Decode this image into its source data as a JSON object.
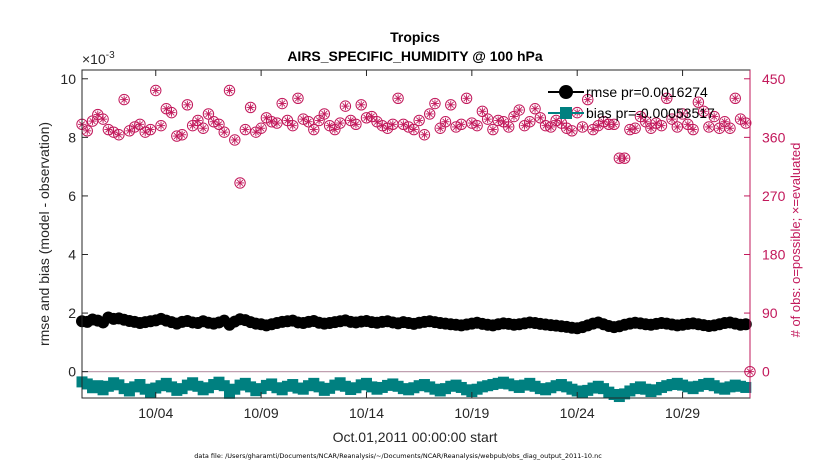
{
  "chart_data": {
    "type": "scatter",
    "title": "Tropics",
    "subtitle": "AIRS_SPECIFIC_HUMIDITY @ 100 hPa",
    "xlabel": "Oct.01,2011 00:00:00 start",
    "ylabel_left": "rmse and bias (model - observation)",
    "ylabel_right": "# of obs: o=possible; ×=evaluated",
    "y_exponent_label": "×10",
    "y_exponent_power": "-3",
    "x_range_days": [
      0.5,
      32.2
    ],
    "x_ticks": [
      {
        "day": 4,
        "label": "10/04"
      },
      {
        "day": 9,
        "label": "10/09"
      },
      {
        "day": 14,
        "label": "10/14"
      },
      {
        "day": 19,
        "label": "10/19"
      },
      {
        "day": 24,
        "label": "10/24"
      },
      {
        "day": 29,
        "label": "10/29"
      }
    ],
    "ylim_left": [
      -0.9,
      10.3
    ],
    "yticks_left": [
      {
        "value": 0,
        "label": "0"
      },
      {
        "value": 2,
        "label": "2"
      },
      {
        "value": 4,
        "label": "4"
      },
      {
        "value": 6,
        "label": "6"
      },
      {
        "value": 8,
        "label": "8"
      },
      {
        "value": 10,
        "label": "10"
      }
    ],
    "ylim_right": [
      -40.5,
      463.5
    ],
    "yticks_right": [
      {
        "value": 0,
        "label": "0"
      },
      {
        "value": 90,
        "label": "90"
      },
      {
        "value": 180,
        "label": "180"
      },
      {
        "value": 270,
        "label": "270"
      },
      {
        "value": 360,
        "label": "360"
      },
      {
        "value": 450,
        "label": "450"
      }
    ],
    "legend": [
      {
        "name": "rmse",
        "label": "rmse pr=0.0016274",
        "color": "#000000"
      },
      {
        "name": "bias",
        "label": "bias pr=-0.00053517",
        "color": "#008080"
      }
    ],
    "colors": {
      "rmse": "#000000",
      "bias": "#008080",
      "obs": "#c2185b",
      "zero_line": "#c0a0b0"
    },
    "series": [
      {
        "name": "rmse",
        "axis": "left",
        "units": "1e-3",
        "x": [
          0.5,
          0.75,
          1.0,
          1.25,
          1.5,
          1.75,
          2.0,
          2.25,
          2.5,
          2.75,
          3.0,
          3.25,
          3.5,
          3.75,
          4.0,
          4.25,
          4.5,
          4.75,
          5.0,
          5.25,
          5.5,
          5.75,
          6.0,
          6.25,
          6.5,
          6.75,
          7.0,
          7.25,
          7.5,
          7.75,
          8.0,
          8.25,
          8.5,
          8.75,
          9.0,
          9.25,
          9.5,
          9.75,
          10.0,
          10.25,
          10.5,
          10.75,
          11.0,
          11.25,
          11.5,
          11.75,
          12.0,
          12.25,
          12.5,
          12.75,
          13.0,
          13.25,
          13.5,
          13.75,
          14.0,
          14.25,
          14.5,
          14.75,
          15.0,
          15.25,
          15.5,
          15.75,
          16.0,
          16.25,
          16.5,
          16.75,
          17.0,
          17.25,
          17.5,
          17.75,
          18.0,
          18.25,
          18.5,
          18.75,
          19.0,
          19.25,
          19.5,
          19.75,
          20.0,
          20.25,
          20.5,
          20.75,
          21.0,
          21.25,
          21.5,
          21.75,
          22.0,
          22.25,
          22.5,
          22.75,
          23.0,
          23.25,
          23.5,
          23.75,
          24.0,
          24.25,
          24.5,
          24.75,
          25.0,
          25.25,
          25.5,
          25.75,
          26.0,
          26.25,
          26.5,
          26.75,
          27.0,
          27.25,
          27.5,
          27.75,
          28.0,
          28.25,
          28.5,
          28.75,
          29.0,
          29.25,
          29.5,
          29.75,
          30.0,
          30.25,
          30.5,
          30.75,
          31.0,
          31.25,
          31.5,
          31.75,
          32.0
        ],
        "values": [
          1.72,
          1.7,
          1.78,
          1.74,
          1.68,
          1.85,
          1.8,
          1.82,
          1.77,
          1.73,
          1.7,
          1.66,
          1.69,
          1.72,
          1.75,
          1.8,
          1.74,
          1.69,
          1.64,
          1.7,
          1.73,
          1.68,
          1.66,
          1.72,
          1.67,
          1.64,
          1.68,
          1.74,
          1.6,
          1.71,
          1.79,
          1.76,
          1.69,
          1.64,
          1.62,
          1.58,
          1.62,
          1.66,
          1.7,
          1.72,
          1.74,
          1.68,
          1.66,
          1.7,
          1.73,
          1.67,
          1.64,
          1.66,
          1.69,
          1.72,
          1.75,
          1.7,
          1.68,
          1.71,
          1.73,
          1.69,
          1.67,
          1.7,
          1.72,
          1.68,
          1.65,
          1.69,
          1.66,
          1.63,
          1.67,
          1.7,
          1.72,
          1.69,
          1.66,
          1.64,
          1.62,
          1.6,
          1.58,
          1.61,
          1.64,
          1.67,
          1.63,
          1.6,
          1.58,
          1.62,
          1.65,
          1.63,
          1.6,
          1.62,
          1.65,
          1.68,
          1.66,
          1.63,
          1.61,
          1.59,
          1.57,
          1.55,
          1.53,
          1.5,
          1.48,
          1.52,
          1.58,
          1.64,
          1.68,
          1.62,
          1.56,
          1.52,
          1.55,
          1.6,
          1.64,
          1.67,
          1.65,
          1.62,
          1.6,
          1.63,
          1.66,
          1.64,
          1.61,
          1.58,
          1.6,
          1.63,
          1.65,
          1.62,
          1.59,
          1.56,
          1.58,
          1.62,
          1.66,
          1.68,
          1.64,
          1.6,
          1.62
        ]
      },
      {
        "name": "bias",
        "axis": "left",
        "units": "1e-3",
        "x": [
          0.5,
          0.75,
          1.0,
          1.25,
          1.5,
          1.75,
          2.0,
          2.25,
          2.5,
          2.75,
          3.0,
          3.25,
          3.5,
          3.75,
          4.0,
          4.25,
          4.5,
          4.75,
          5.0,
          5.25,
          5.5,
          5.75,
          6.0,
          6.25,
          6.5,
          6.75,
          7.0,
          7.25,
          7.5,
          7.75,
          8.0,
          8.25,
          8.5,
          8.75,
          9.0,
          9.25,
          9.5,
          9.75,
          10.0,
          10.25,
          10.5,
          10.75,
          11.0,
          11.25,
          11.5,
          11.75,
          12.0,
          12.25,
          12.5,
          12.75,
          13.0,
          13.25,
          13.5,
          13.75,
          14.0,
          14.25,
          14.5,
          14.75,
          15.0,
          15.25,
          15.5,
          15.75,
          16.0,
          16.25,
          16.5,
          16.75,
          17.0,
          17.25,
          17.5,
          17.75,
          18.0,
          18.25,
          18.5,
          18.75,
          19.0,
          19.25,
          19.5,
          19.75,
          20.0,
          20.25,
          20.5,
          20.75,
          21.0,
          21.25,
          21.5,
          21.75,
          22.0,
          22.25,
          22.5,
          22.75,
          23.0,
          23.25,
          23.5,
          23.75,
          24.0,
          24.25,
          24.5,
          24.75,
          25.0,
          25.25,
          25.5,
          25.75,
          26.0,
          26.25,
          26.5,
          26.75,
          27.0,
          27.25,
          27.5,
          27.75,
          28.0,
          28.25,
          28.5,
          28.75,
          29.0,
          29.25,
          29.5,
          29.75,
          30.0,
          30.25,
          30.5,
          30.75,
          31.0,
          31.25,
          31.5,
          31.75,
          32.0
        ],
        "values": [
          -0.35,
          -0.42,
          -0.55,
          -0.48,
          -0.62,
          -0.5,
          -0.38,
          -0.45,
          -0.58,
          -0.66,
          -0.52,
          -0.44,
          -0.6,
          -0.7,
          -0.56,
          -0.48,
          -0.4,
          -0.52,
          -0.64,
          -0.58,
          -0.46,
          -0.38,
          -0.5,
          -0.62,
          -0.55,
          -0.44,
          -0.36,
          -0.48,
          -0.74,
          -0.6,
          -0.46,
          -0.4,
          -0.52,
          -0.65,
          -0.58,
          -0.47,
          -0.42,
          -0.55,
          -0.62,
          -0.5,
          -0.44,
          -0.56,
          -0.6,
          -0.48,
          -0.4,
          -0.52,
          -0.64,
          -0.57,
          -0.46,
          -0.38,
          -0.5,
          -0.61,
          -0.55,
          -0.45,
          -0.4,
          -0.52,
          -0.6,
          -0.54,
          -0.47,
          -0.42,
          -0.5,
          -0.58,
          -0.62,
          -0.55,
          -0.48,
          -0.44,
          -0.52,
          -0.6,
          -0.66,
          -0.58,
          -0.5,
          -0.46,
          -0.54,
          -0.62,
          -0.68,
          -0.6,
          -0.52,
          -0.48,
          -0.44,
          -0.4,
          -0.36,
          -0.42,
          -0.48,
          -0.54,
          -0.46,
          -0.4,
          -0.5,
          -0.58,
          -0.62,
          -0.55,
          -0.48,
          -0.44,
          -0.52,
          -0.6,
          -0.66,
          -0.72,
          -0.64,
          -0.56,
          -0.5,
          -0.58,
          -0.7,
          -0.78,
          -0.85,
          -0.76,
          -0.66,
          -0.58,
          -0.52,
          -0.6,
          -0.68,
          -0.62,
          -0.54,
          -0.48,
          -0.44,
          -0.4,
          -0.46,
          -0.52,
          -0.58,
          -0.5,
          -0.44,
          -0.4,
          -0.48,
          -0.56,
          -0.6,
          -0.52,
          -0.46,
          -0.5,
          -0.54
        ]
      },
      {
        "name": "obs_count",
        "axis": "right",
        "x": [
          0.5,
          0.75,
          1.0,
          1.25,
          1.5,
          1.75,
          2.0,
          2.25,
          2.5,
          2.75,
          3.0,
          3.25,
          3.5,
          3.75,
          4.0,
          4.25,
          4.5,
          4.75,
          5.0,
          5.25,
          5.5,
          5.75,
          6.0,
          6.25,
          6.5,
          6.75,
          7.0,
          7.25,
          7.5,
          7.75,
          8.0,
          8.25,
          8.5,
          8.75,
          9.0,
          9.25,
          9.5,
          9.75,
          10.0,
          10.25,
          10.5,
          10.75,
          11.0,
          11.25,
          11.5,
          11.75,
          12.0,
          12.25,
          12.5,
          12.75,
          13.0,
          13.25,
          13.5,
          13.75,
          14.0,
          14.25,
          14.5,
          14.75,
          15.0,
          15.25,
          15.5,
          15.75,
          16.0,
          16.25,
          16.5,
          16.75,
          17.0,
          17.25,
          17.5,
          17.75,
          18.0,
          18.25,
          18.5,
          18.75,
          19.0,
          19.25,
          19.5,
          19.75,
          20.0,
          20.25,
          20.5,
          20.75,
          21.0,
          21.25,
          21.5,
          21.75,
          22.0,
          22.25,
          22.5,
          22.75,
          23.0,
          23.25,
          23.5,
          23.75,
          24.0,
          24.25,
          24.5,
          24.75,
          25.0,
          25.25,
          25.5,
          25.75,
          26.0,
          26.25,
          26.5,
          26.75,
          27.0,
          27.25,
          27.5,
          27.75,
          28.0,
          28.25,
          28.5,
          28.75,
          29.0,
          29.25,
          29.5,
          29.75,
          30.0,
          30.25,
          30.5,
          30.75,
          31.0,
          31.25,
          31.5,
          31.75,
          32.0
        ],
        "values": [
          380,
          370,
          385,
          395,
          388,
          372,
          368,
          364,
          418,
          370,
          376,
          380,
          368,
          372,
          432,
          378,
          404,
          398,
          362,
          364,
          410,
          378,
          386,
          374,
          396,
          384,
          380,
          368,
          432,
          356,
          290,
          372,
          406,
          368,
          374,
          390,
          384,
          382,
          412,
          386,
          378,
          420,
          388,
          384,
          372,
          386,
          396,
          378,
          372,
          382,
          408,
          386,
          380,
          410,
          390,
          392,
          384,
          378,
          374,
          380,
          420,
          380,
          376,
          372,
          386,
          364,
          396,
          412,
          374,
          384,
          410,
          376,
          380,
          420,
          382,
          378,
          400,
          388,
          372,
          386,
          384,
          376,
          392,
          402,
          378,
          384,
          404,
          390,
          378,
          376,
          386,
          382,
          374,
          370,
          398,
          376,
          418,
          372,
          378,
          384,
          380,
          380,
          328,
          328,
          372,
          374,
          392,
          384,
          374,
          382,
          378,
          420,
          388,
          376,
          396,
          380,
          372,
          414,
          400,
          376,
          392,
          374,
          384,
          374,
          420,
          388,
          382
        ]
      }
    ],
    "footnote": "data file: /Users/gharamti/Documents/NCAR/Reanalysis/~/Documents/NCAR/Reanalysis/webpub/obs_diag_output_2011-10.nc"
  }
}
